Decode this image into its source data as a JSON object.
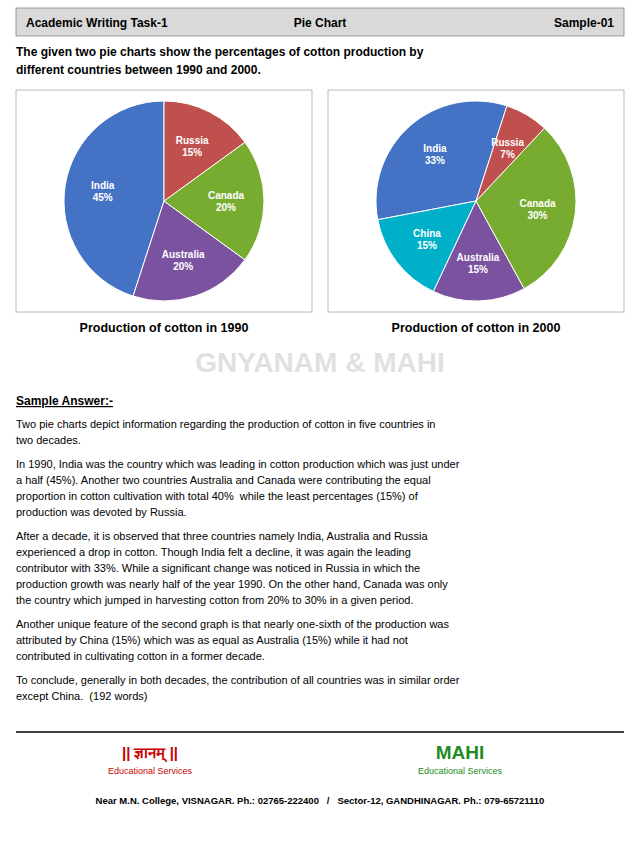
{
  "header_left": "Academic Writing Task-1",
  "header_center": "Pie Chart",
  "header_right": "Sample-01",
  "intro_text": "The given two pie charts show the percentages of cotton production by\ndifferent countries between 1990 and 2000.",
  "chart_data": [
    {
      "type": "pie",
      "title": "Production of cotton in 1990",
      "categories": [
        "India",
        "Australia",
        "Canada",
        "Russia"
      ],
      "values": [
        45,
        20,
        20,
        15
      ],
      "value_labels": [
        "45%",
        "20%",
        "20%",
        "15%"
      ],
      "colors": [
        "#4472C4",
        "#7B52A0",
        "#77AC30",
        "#C0504D"
      ],
      "data_labels": true
    },
    {
      "type": "pie",
      "title": "Production of cotton in 2000",
      "categories": [
        "India",
        "China",
        "Australia",
        "Canada",
        "Russia"
      ],
      "values": [
        33,
        15,
        15,
        30,
        7
      ],
      "value_labels": [
        "33%",
        "15%",
        "15%",
        "30%",
        "7%"
      ],
      "colors": [
        "#4472C4",
        "#00B0C8",
        "#7B52A0",
        "#77AC30",
        "#C0504D"
      ],
      "data_labels": true
    }
  ],
  "watermark_text": "GNYANAM & MAHI",
  "sample_answer_title": "Sample Answer:-",
  "body_text": [
    "Two pie charts depict information regarding the production of cotton in five countries in\ntwo decades.",
    "In 1990, India was the country which was leading in cotton production which was just under\na half (45%). Another two countries Australia and Canada were contributing the equal\nproportion in cotton cultivation with total 40%  while the least percentages (15%) of\nproduction was devoted by Russia.",
    "After a decade, it is observed that three countries namely India, Australia and Russia\nexperienced a drop in cotton. Though India felt a decline, it was again the leading\ncontributor with 33%. While a significant change was noticed in Russia in which the\nproduction growth was nearly half of the year 1990. On the other hand, Canada was only\nthe country which jumped in harvesting cotton from 20% to 30% in a given period.",
    "Another unique feature of the second graph is that nearly one-sixth of the production was\nattributed by China (15%) which was as equal as Australia (15%) while it had not\ncontributed in cultivating cotton in a former decade.",
    "To conclude, generally in both decades, the contribution of all countries was in similar order\nexcept China.  (192 words)"
  ],
  "footer_logo_left": "|| ज्ञानम् ||",
  "footer_logo_right": "MAHI",
  "footer_taglines": [
    "Educational Services",
    "Educational Services"
  ],
  "footer_bottom": "Near M.N. College, VISNAGAR. Ph.: 02765-222400   /   Sector-12, GANDHINAGAR. Ph.: 079-65721110"
}
